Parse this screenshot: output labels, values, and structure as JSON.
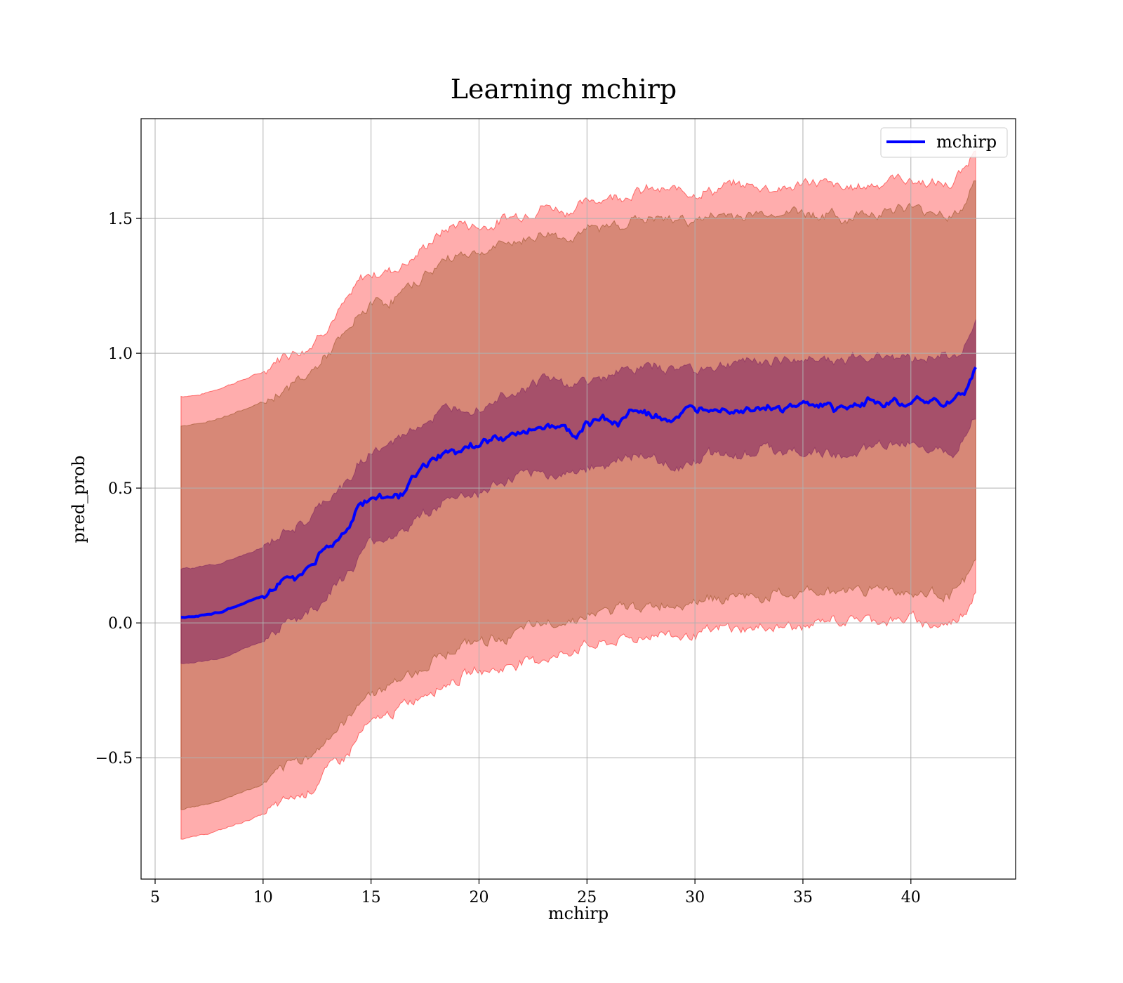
{
  "chart_data": {
    "type": "line",
    "title": "Learning mchirp",
    "xlabel": "mchirp",
    "ylabel": "pred_prob",
    "xlim": [
      4.35,
      44.85
    ],
    "ylim": [
      -0.95,
      1.87
    ],
    "xticks": [
      5,
      10,
      15,
      20,
      25,
      30,
      35,
      40
    ],
    "xtick_labels": [
      "5",
      "10",
      "15",
      "20",
      "25",
      "30",
      "35",
      "40"
    ],
    "yticks": [
      -0.5,
      0.0,
      0.5,
      1.0,
      1.5
    ],
    "ytick_labels": [
      "−0.5",
      "0.0",
      "0.5",
      "1.0",
      "1.5"
    ],
    "grid": true,
    "legend": {
      "location": "upper right",
      "entries": [
        "mchirp"
      ]
    },
    "colors": {
      "line": "#0000ff",
      "band_outer": "#ff0000",
      "band_middle": "#8b4513",
      "band_inner": "#6a0d5a",
      "grid": "#b0b0b0"
    },
    "series": [
      {
        "name": "mchirp",
        "x": [
          6.2,
          7.0,
          8.0,
          9.0,
          10.0,
          10.5,
          11.0,
          11.7,
          12.0,
          13.0,
          14.0,
          14.5,
          15.0,
          16.0,
          16.3,
          17.0,
          18.0,
          19.0,
          19.7,
          20.0,
          21.0,
          22.0,
          23.0,
          24.0,
          24.5,
          25.0,
          26.0,
          26.5,
          27.0,
          28.0,
          29.0,
          30.0,
          31.0,
          32.0,
          33.0,
          34.0,
          35.0,
          36.0,
          36.5,
          37.0,
          38.0,
          39.0,
          40.0,
          41.0,
          41.9,
          42.2,
          42.5,
          43.0
        ],
        "y": [
          0.02,
          0.025,
          0.04,
          0.07,
          0.1,
          0.13,
          0.17,
          0.17,
          0.2,
          0.28,
          0.36,
          0.44,
          0.46,
          0.49,
          0.47,
          0.54,
          0.6,
          0.64,
          0.66,
          0.65,
          0.69,
          0.7,
          0.74,
          0.72,
          0.7,
          0.75,
          0.76,
          0.74,
          0.79,
          0.77,
          0.76,
          0.78,
          0.8,
          0.79,
          0.81,
          0.79,
          0.81,
          0.8,
          0.78,
          0.79,
          0.82,
          0.83,
          0.84,
          0.82,
          0.81,
          0.86,
          0.84,
          0.95
        ]
      }
    ],
    "bands": [
      {
        "color": "band_outer",
        "x": [
          6.2,
          7.0,
          8.0,
          9.0,
          10.0,
          11.0,
          12.0,
          13.0,
          14.0,
          14.5,
          15.0,
          16.0,
          17.0,
          18.0,
          19.0,
          20.0,
          21.0,
          22.0,
          23.0,
          24.0,
          25.0,
          26.0,
          27.0,
          28.0,
          29.0,
          30.0,
          31.0,
          32.0,
          33.0,
          34.0,
          35.0,
          36.0,
          37.0,
          38.0,
          39.0,
          40.0,
          41.0,
          41.9,
          42.5,
          43.0
        ],
        "upper": [
          0.84,
          0.845,
          0.87,
          0.9,
          0.93,
          0.99,
          1.03,
          1.11,
          1.19,
          1.26,
          1.29,
          1.31,
          1.37,
          1.43,
          1.48,
          1.47,
          1.5,
          1.52,
          1.55,
          1.53,
          1.56,
          1.58,
          1.6,
          1.61,
          1.6,
          1.61,
          1.61,
          1.62,
          1.62,
          1.62,
          1.63,
          1.63,
          1.61,
          1.63,
          1.65,
          1.64,
          1.63,
          1.62,
          1.67,
          1.76
        ],
        "lower": [
          -0.8,
          -0.79,
          -0.77,
          -0.74,
          -0.71,
          -0.66,
          -0.62,
          -0.54,
          -0.47,
          -0.4,
          -0.37,
          -0.33,
          -0.29,
          -0.24,
          -0.2,
          -0.17,
          -0.16,
          -0.14,
          -0.12,
          -0.11,
          -0.08,
          -0.07,
          -0.05,
          -0.04,
          -0.04,
          -0.03,
          -0.02,
          -0.02,
          -0.02,
          -0.01,
          -0.01,
          0.0,
          0.0,
          0.01,
          0.01,
          0.01,
          0.0,
          0.0,
          0.05,
          0.14
        ]
      },
      {
        "color": "band_middle",
        "x": [
          6.2,
          7.0,
          8.0,
          9.0,
          10.0,
          11.0,
          12.0,
          13.0,
          14.0,
          14.5,
          15.0,
          16.0,
          17.0,
          18.0,
          19.0,
          20.0,
          21.0,
          22.0,
          23.0,
          24.0,
          25.0,
          26.0,
          27.0,
          28.0,
          29.0,
          30.0,
          31.0,
          32.0,
          33.0,
          34.0,
          35.0,
          36.0,
          37.0,
          38.0,
          39.0,
          40.0,
          41.0,
          41.9,
          42.5,
          43.0
        ],
        "upper": [
          0.73,
          0.735,
          0.76,
          0.79,
          0.82,
          0.88,
          0.92,
          1.0,
          1.08,
          1.15,
          1.18,
          1.2,
          1.26,
          1.32,
          1.37,
          1.36,
          1.39,
          1.41,
          1.44,
          1.42,
          1.45,
          1.47,
          1.49,
          1.5,
          1.49,
          1.5,
          1.5,
          1.51,
          1.51,
          1.51,
          1.52,
          1.52,
          1.5,
          1.52,
          1.54,
          1.53,
          1.52,
          1.51,
          1.56,
          1.66
        ],
        "lower": [
          -0.69,
          -0.68,
          -0.66,
          -0.63,
          -0.6,
          -0.55,
          -0.51,
          -0.43,
          -0.36,
          -0.29,
          -0.26,
          -0.22,
          -0.18,
          -0.13,
          -0.09,
          -0.06,
          -0.05,
          -0.03,
          -0.01,
          0.0,
          0.03,
          0.04,
          0.06,
          0.07,
          0.07,
          0.08,
          0.09,
          0.09,
          0.09,
          0.1,
          0.1,
          0.11,
          0.11,
          0.12,
          0.12,
          0.12,
          0.11,
          0.11,
          0.15,
          0.24
        ]
      },
      {
        "color": "band_inner",
        "x": [
          6.2,
          7.0,
          8.0,
          9.0,
          10.0,
          11.0,
          12.0,
          13.0,
          14.0,
          14.5,
          15.0,
          16.0,
          17.0,
          18.0,
          19.0,
          20.0,
          21.0,
          22.0,
          23.0,
          24.0,
          25.0,
          26.0,
          27.0,
          28.0,
          29.0,
          30.0,
          31.0,
          32.0,
          33.0,
          34.0,
          35.0,
          36.0,
          37.0,
          38.0,
          39.0,
          40.0,
          41.0,
          41.9,
          42.5,
          43.0
        ],
        "upper": [
          0.2,
          0.205,
          0.22,
          0.25,
          0.28,
          0.34,
          0.37,
          0.45,
          0.52,
          0.6,
          0.64,
          0.66,
          0.72,
          0.77,
          0.82,
          0.81,
          0.84,
          0.86,
          0.9,
          0.88,
          0.9,
          0.92,
          0.94,
          0.95,
          0.94,
          0.95,
          0.96,
          0.97,
          0.97,
          0.97,
          0.98,
          0.99,
          0.97,
          0.99,
          1.0,
          0.99,
          0.99,
          0.98,
          1.03,
          1.12
        ],
        "lower": [
          -0.15,
          -0.145,
          -0.13,
          -0.1,
          -0.07,
          -0.01,
          0.03,
          0.11,
          0.19,
          0.26,
          0.29,
          0.33,
          0.37,
          0.42,
          0.47,
          0.49,
          0.52,
          0.54,
          0.56,
          0.55,
          0.59,
          0.6,
          0.62,
          0.6,
          0.59,
          0.61,
          0.63,
          0.62,
          0.64,
          0.63,
          0.64,
          0.63,
          0.61,
          0.65,
          0.66,
          0.66,
          0.65,
          0.64,
          0.69,
          0.78
        ]
      }
    ]
  }
}
